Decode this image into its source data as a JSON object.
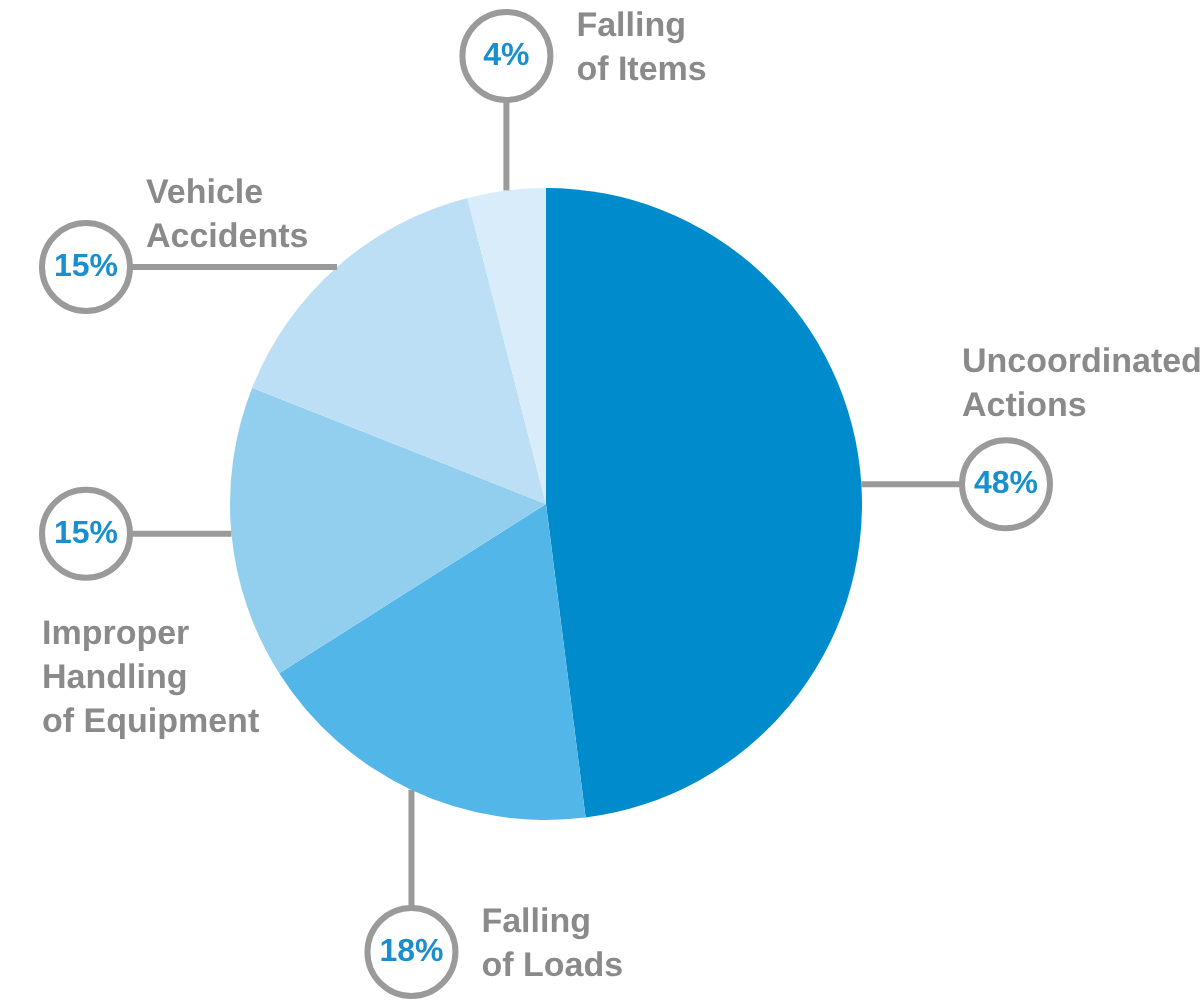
{
  "chart_data": {
    "type": "pie",
    "categories": [
      "Uncoordinated\nActions",
      "Falling\nof Loads",
      "Improper\nHandling\nof Equipment",
      "Vehicle\nAccidents",
      "Falling\nof Items"
    ],
    "values": [
      48,
      18,
      15,
      15,
      4
    ],
    "colors": [
      "#008ccc",
      "#52b6e8",
      "#92cfef",
      "#bcdff6",
      "#d8ecfa"
    ],
    "value_labels": [
      "48%",
      "18%",
      "15%",
      "15%",
      "4%"
    ]
  }
}
